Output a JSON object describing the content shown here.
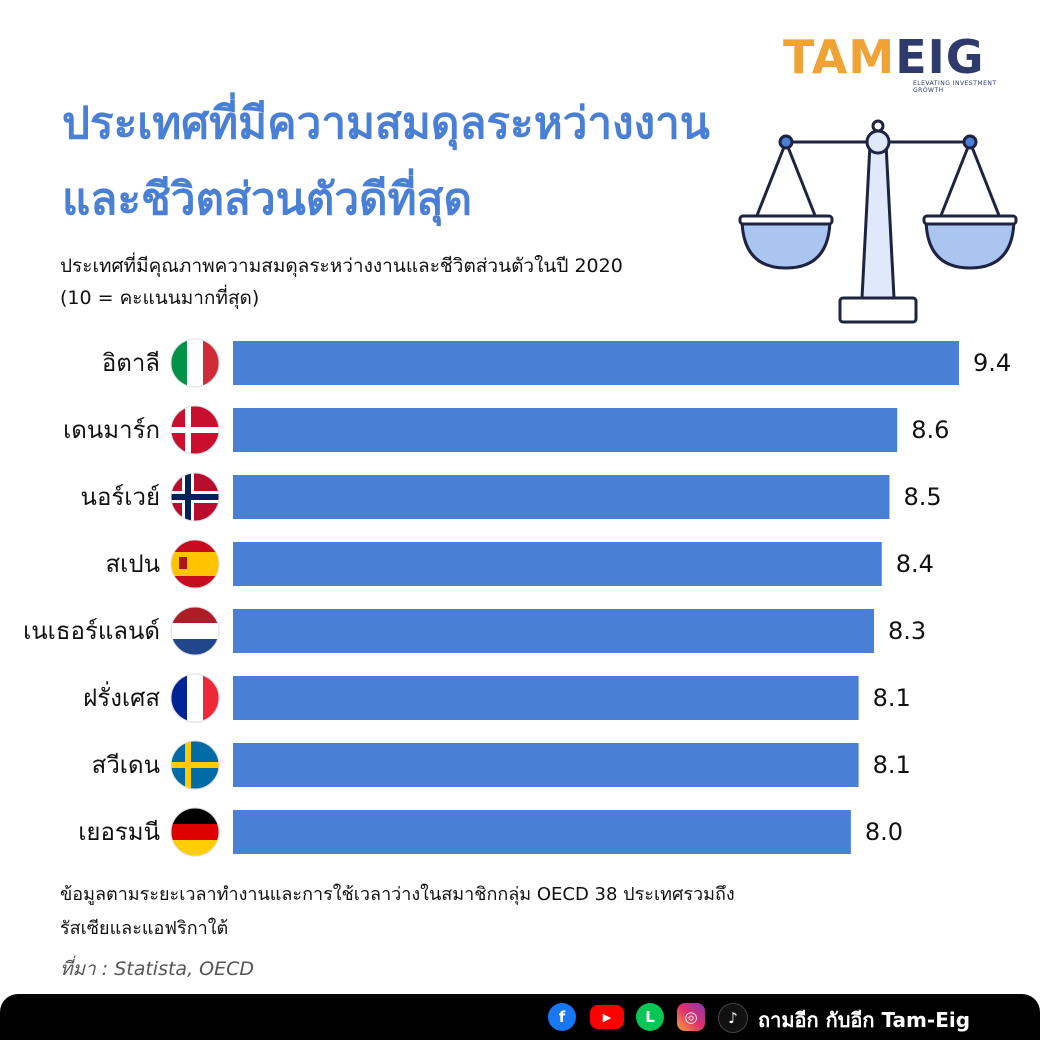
{
  "logo": {
    "main": "TAM",
    "accent": "EIG",
    "tagline": "ELEVATING INVESTMENT GROWTH"
  },
  "title": {
    "line1": "ประเทศที่มีความสมดุลระหว่างงาน",
    "line2": "และชีวิตส่วนตัวดีที่สุด"
  },
  "subtitle": {
    "line1": "ประเทศที่มีคุณภาพความสมดุลระหว่างงานและชีวิตส่วนตัวในปี 2020",
    "line2": "(10 = คะแนนมากที่สุด)"
  },
  "chart_data": {
    "type": "bar",
    "orientation": "horizontal",
    "categories": [
      "อิตาลี",
      "เดนมาร์ก",
      "นอร์เวย์",
      "สเปน",
      "เนเธอร์แลนด์",
      "ฝรั่งเศส",
      "สวีเดน",
      "เยอรมนี"
    ],
    "values": [
      9.4,
      8.6,
      8.5,
      8.4,
      8.3,
      8.1,
      8.1,
      8.0
    ],
    "value_labels": [
      "9.4",
      "8.6",
      "8.5",
      "8.4",
      "8.3",
      "8.1",
      "8.1",
      "8.0"
    ],
    "flags": [
      "italy-flag",
      "denmark-flag",
      "norway-flag",
      "spain-flag",
      "netherlands-flag",
      "france-flag",
      "sweden-flag",
      "germany-flag"
    ],
    "xlim": [
      0,
      9.4
    ],
    "bar_color": "#4a7fd6",
    "grid": false,
    "legend": "none"
  },
  "note": {
    "line1": "ข้อมูลตามระยะเวลาทำงานและการใช้เวลาว่างในสมาชิกกลุ่ม OECD 38 ประเทศรวมถึง",
    "line2": "รัสเซียและแอฟริกาใต้"
  },
  "source": "ที่มา : Statista, OECD",
  "footer": {
    "icons": [
      "facebook-icon",
      "youtube-icon",
      "line-icon",
      "instagram-icon",
      "tiktok-icon"
    ],
    "brand": "ถามอีก กับอีก Tam-Eig"
  },
  "colors": {
    "accent": "#4a7fd6",
    "logo_orange": "#f0a234",
    "logo_navy": "#2d3a6b",
    "footer": "#000000"
  }
}
